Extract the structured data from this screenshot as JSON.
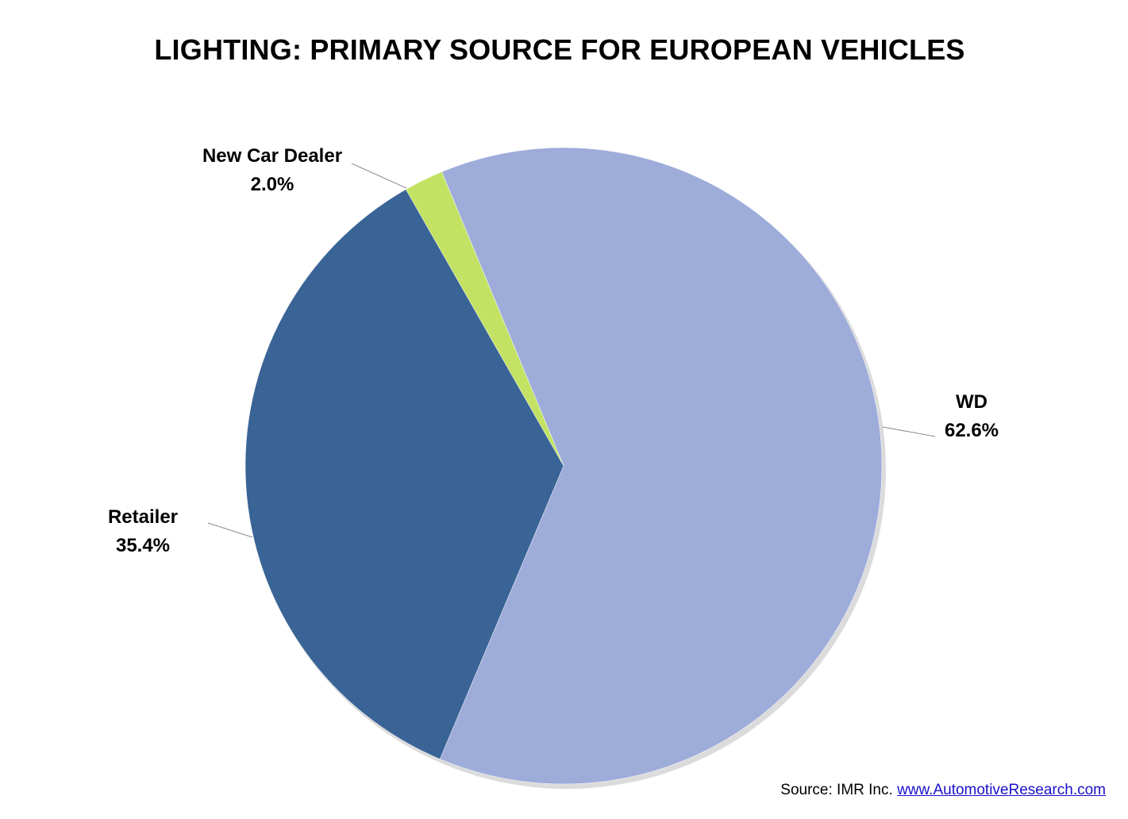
{
  "chart_data": {
    "type": "pie",
    "title": "LIGHTING: PRIMARY SOURCE FOR EUROPEAN VEHICLES",
    "slices": [
      {
        "label": "WD",
        "value": 62.6,
        "value_label": "62.6%",
        "color": "#9eacda"
      },
      {
        "label": "Retailer",
        "value": 35.4,
        "value_label": "35.4%",
        "color": "#3a6496"
      },
      {
        "label": "New Car Dealer",
        "value": 2.0,
        "value_label": "2.0%",
        "color": "#c3e264"
      }
    ],
    "start_angle_deg": -22.5,
    "direction": "clockwise",
    "legend": "none",
    "data_labels": "outside with leader lines"
  },
  "source": {
    "prefix": "Source: IMR Inc.",
    "link_text": "www.AutomotiveResearch.com"
  }
}
